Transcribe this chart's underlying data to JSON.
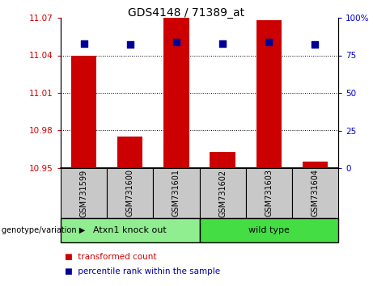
{
  "title": "GDS4148 / 71389_at",
  "samples": [
    "GSM731599",
    "GSM731600",
    "GSM731601",
    "GSM731602",
    "GSM731603",
    "GSM731604"
  ],
  "transformed_counts": [
    11.04,
    10.975,
    11.07,
    10.963,
    11.068,
    10.955
  ],
  "percentile_ranks": [
    83,
    82,
    84,
    83,
    84,
    82
  ],
  "ylim_left": [
    10.95,
    11.07
  ],
  "ylim_right": [
    0,
    100
  ],
  "yticks_left": [
    10.95,
    10.98,
    11.01,
    11.04,
    11.07
  ],
  "yticks_right": [
    0,
    25,
    50,
    75,
    100
  ],
  "ytick_labels_left": [
    "10.95",
    "10.98",
    "11.01",
    "11.04",
    "11.07"
  ],
  "ytick_labels_right": [
    "0",
    "25",
    "50",
    "75",
    "100%"
  ],
  "groups": [
    {
      "label": "Atxn1 knock out",
      "indices": [
        0,
        1,
        2
      ],
      "color": "#90EE90"
    },
    {
      "label": "wild type",
      "indices": [
        3,
        4,
        5
      ],
      "color": "#44DD44"
    }
  ],
  "bar_color": "#CC0000",
  "dot_color": "#000099",
  "bar_width": 0.55,
  "group_label_prefix": "genotype/variation",
  "legend_items": [
    {
      "label": "transformed count",
      "color": "#CC0000"
    },
    {
      "label": "percentile rank within the sample",
      "color": "#000099"
    }
  ],
  "bg_color": "#FFFFFF",
  "tick_color_left": "#CC0000",
  "tick_color_right": "#0000CC",
  "grid_color": "#000000",
  "sample_bg_color": "#C8C8C8"
}
